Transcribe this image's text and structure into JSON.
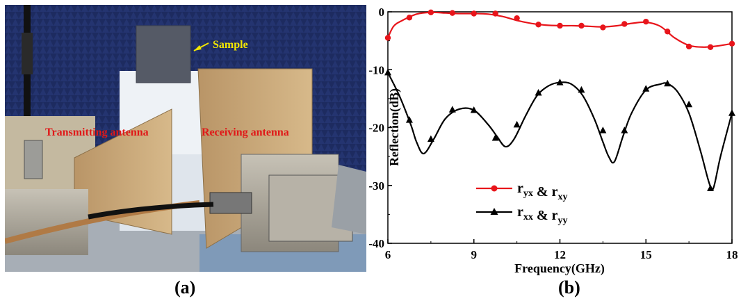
{
  "photo": {
    "label_sample": "Sample",
    "label_transmitting": "Transmitting antenna",
    "label_receiving": "Receiving antenna",
    "caption": "(a)",
    "colors": {
      "background": "#1c2a5a",
      "table": "#c8cdd2",
      "horn": "#c9a877",
      "label_red": "#e01818",
      "label_yellow": "#f2e600"
    }
  },
  "chart_caption": "(b)",
  "chart_data": {
    "type": "line",
    "xlabel": "Frequency(GHz)",
    "ylabel": "Reflection(dB)",
    "xlim": [
      6,
      18
    ],
    "ylim": [
      -40,
      0
    ],
    "xticks": [
      6,
      9,
      12,
      15,
      18
    ],
    "yticks": [
      0,
      -10,
      -20,
      -30,
      -40
    ],
    "xtick_labels": [
      "6",
      "9",
      "12",
      "15",
      "18"
    ],
    "ytick_labels": [
      "0",
      "-10",
      "-20",
      "-30",
      "-40"
    ],
    "legend_position": "lower-left",
    "grid": false,
    "series": [
      {
        "name": "r_yx & r_xy",
        "legend": {
          "a": "r",
          "a_sub": "yx",
          "mid": " & r",
          "b_sub": "xy"
        },
        "color": "#e8151b",
        "marker": "circle",
        "x": [
          6.0,
          6.2,
          6.5,
          7.0,
          7.5,
          8.0,
          8.5,
          9.0,
          9.5,
          10.0,
          10.5,
          11.0,
          11.5,
          12.0,
          12.5,
          13.0,
          13.5,
          14.0,
          14.5,
          15.0,
          15.5,
          16.0,
          16.5,
          17.0,
          17.5,
          18.0
        ],
        "y": [
          -4.5,
          -2.5,
          -1.5,
          -0.4,
          -0.1,
          -0.2,
          -0.3,
          -0.3,
          -0.4,
          -0.8,
          -1.5,
          -2.0,
          -2.3,
          -2.4,
          -2.4,
          -2.5,
          -2.6,
          -2.4,
          -2.0,
          -1.8,
          -2.5,
          -4.5,
          -5.8,
          -6.1,
          -5.9,
          -5.5
        ],
        "marker_x": [
          6.0,
          6.75,
          7.5,
          8.25,
          9.0,
          9.75,
          10.5,
          11.25,
          12.0,
          12.75,
          13.5,
          14.25,
          15.0,
          15.75,
          16.5,
          17.25,
          18.0
        ],
        "marker_y": [
          -4.5,
          -1.0,
          -0.1,
          -0.2,
          -0.3,
          -0.3,
          -1.1,
          -2.2,
          -2.4,
          -2.4,
          -2.7,
          -2.1,
          -1.7,
          -3.4,
          -6.0,
          -6.1,
          -5.5
        ]
      },
      {
        "name": "r_xx & r_yy",
        "legend": {
          "a": "r",
          "a_sub": "xx",
          "mid": " & r",
          "b_sub": "yy"
        },
        "color": "#000000",
        "marker": "triangle",
        "x": [
          6.0,
          6.4,
          6.8,
          7.0,
          7.25,
          7.6,
          8.0,
          8.5,
          9.0,
          9.5,
          9.8,
          10.1,
          10.4,
          10.8,
          11.2,
          11.6,
          12.0,
          12.4,
          12.8,
          13.2,
          13.5,
          13.7,
          13.9,
          14.2,
          14.5,
          15.0,
          15.5,
          15.75,
          16.1,
          16.5,
          16.9,
          17.2,
          17.35,
          17.6,
          18.0
        ],
        "y": [
          -10.5,
          -14.5,
          -19.5,
          -22.5,
          -24.5,
          -22.0,
          -18.5,
          -16.8,
          -17.0,
          -19.5,
          -21.5,
          -23.3,
          -22.0,
          -18.0,
          -14.5,
          -12.8,
          -12.2,
          -12.5,
          -14.5,
          -18.5,
          -22.5,
          -25.0,
          -25.9,
          -21.5,
          -17.5,
          -13.5,
          -12.5,
          -12.4,
          -13.8,
          -17.5,
          -24.0,
          -29.5,
          -30.5,
          -25.0,
          -17.5
        ],
        "marker_x": [
          6.0,
          6.75,
          7.5,
          8.25,
          9.0,
          9.75,
          10.5,
          11.25,
          12.0,
          12.75,
          13.5,
          14.25,
          15.0,
          15.75,
          16.5,
          17.25,
          18.0
        ],
        "marker_y": [
          -10.5,
          -18.7,
          -22.0,
          -16.9,
          -17.0,
          -21.8,
          -19.5,
          -14.0,
          -12.2,
          -13.5,
          -20.5,
          -20.5,
          -13.3,
          -12.4,
          -16.0,
          -30.5,
          -17.5
        ]
      }
    ]
  }
}
